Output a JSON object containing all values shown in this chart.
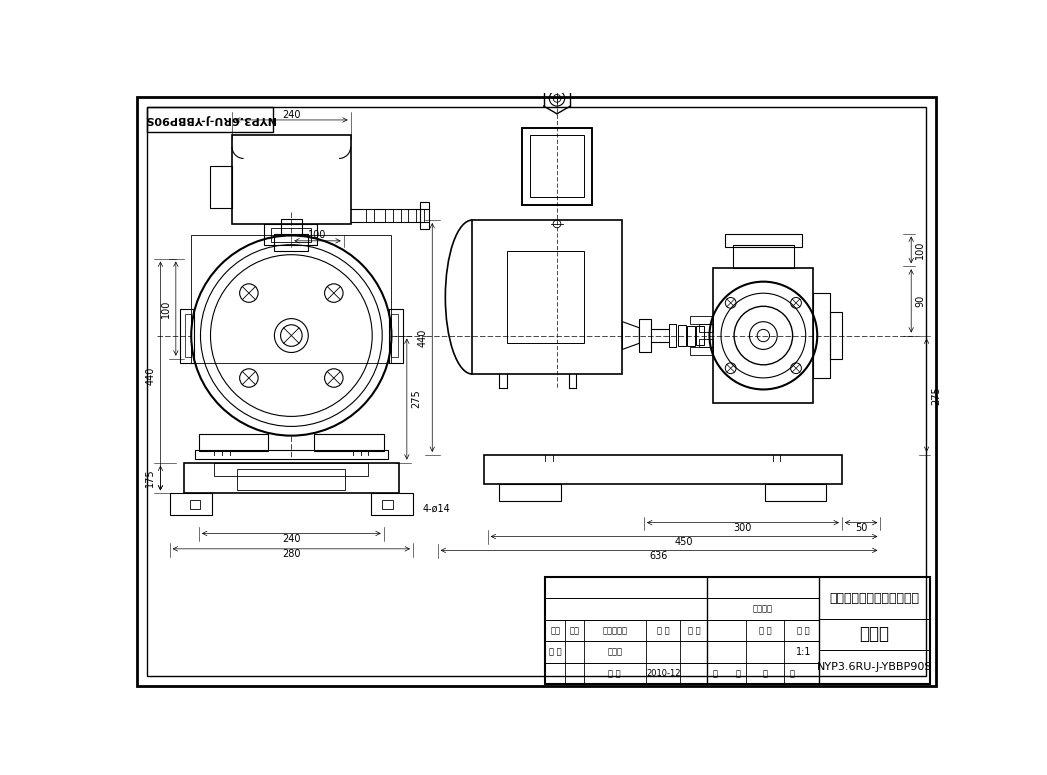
{
  "bg_color": "#ffffff",
  "line_color": "#000000",
  "title_box_text": "NYP3.6RU-J-YBBP90S",
  "company": "河北远东泵业制造有限公司",
  "drawing_title": "机组图",
  "drawing_number": "NYP3.6RU-J-YBBP90S",
  "scale": "1:1",
  "date": "2010-12",
  "label_biaoji": "标记",
  "label_chushu": "处数",
  "label_gaiwen": "更改文件名",
  "label_qianzi": "签 字",
  "label_riqi": "日 期",
  "label_shejii": "设 计",
  "label_biaozhun": "标准文",
  "label_tuyangbj": "图样标记",
  "label_zhongliang": "重 量",
  "label_bili": "比 例",
  "label_ri": "日 期",
  "label_gong": "共",
  "label_ji1": "集",
  "label_di": "第",
  "label_ji2": "集"
}
